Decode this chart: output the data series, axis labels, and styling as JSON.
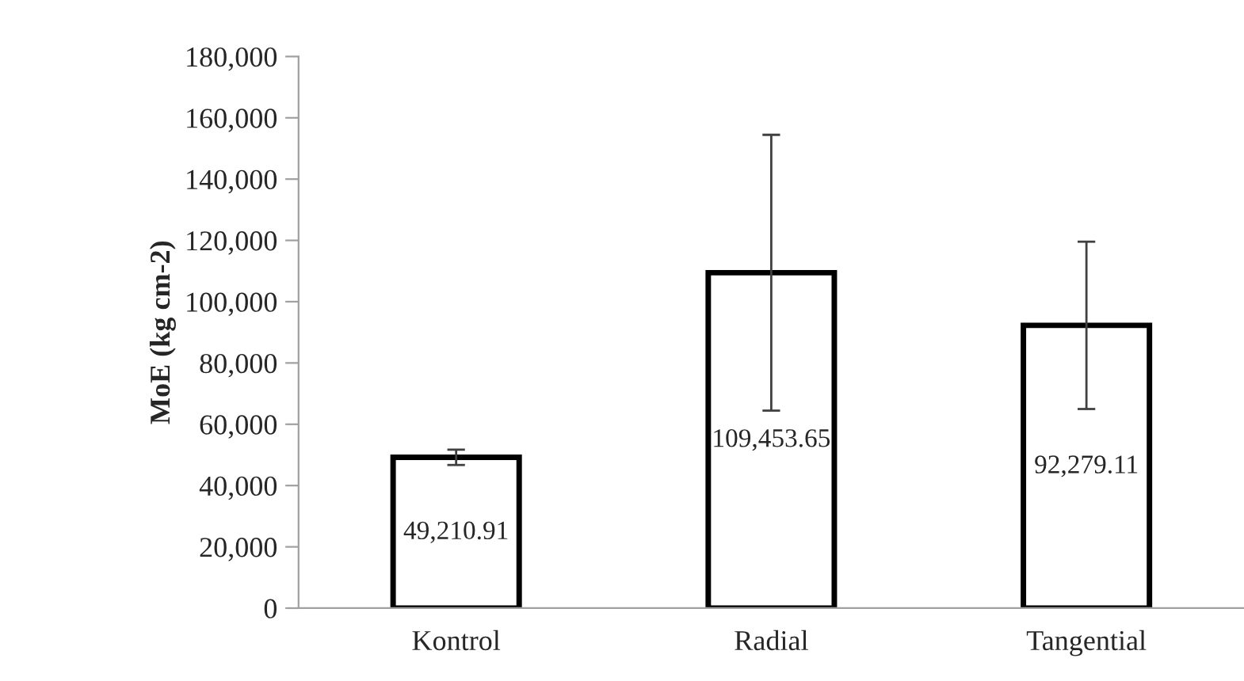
{
  "chart_data": {
    "type": "bar",
    "ylabel": "MoE (kg cm-2)",
    "categories": [
      "Kontrol",
      "Radial",
      "Tangential"
    ],
    "values": [
      49210.91,
      109453.65,
      92279.11
    ],
    "errors": [
      2500,
      45000,
      27300
    ],
    "value_labels": [
      "49,210.91",
      "109,453.65",
      "92,279.11"
    ],
    "color": "#ffffff",
    "ylim": [
      0,
      180000
    ],
    "yticks": [
      {
        "value": 0,
        "label": "0"
      },
      {
        "value": 20000,
        "label": "20,000"
      },
      {
        "value": 40000,
        "label": "40,000"
      },
      {
        "value": 60000,
        "label": "60,000"
      },
      {
        "value": 80000,
        "label": "80,000"
      },
      {
        "value": 100000,
        "label": "100,000"
      },
      {
        "value": 120000,
        "label": "120,000"
      },
      {
        "value": 140000,
        "label": "140,000"
      },
      {
        "value": 160000,
        "label": "160,000"
      },
      {
        "value": 180000,
        "label": "180,000"
      }
    ],
    "grid": false,
    "legend": false
  }
}
